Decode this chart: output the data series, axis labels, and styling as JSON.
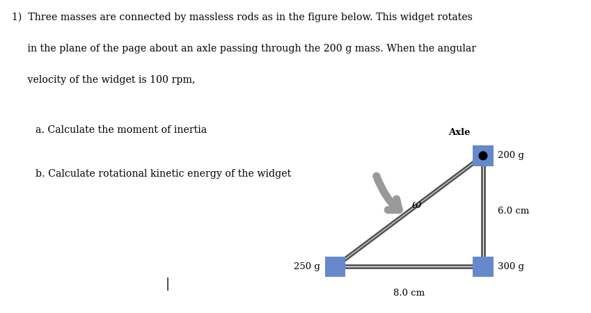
{
  "background_color": "#ffffff",
  "mass_color": "#6688cc",
  "rod_color": "#555555",
  "axle_label": "Axle",
  "mass_200_label": "200 g",
  "mass_250_label": "250 g",
  "mass_300_label": "300 g",
  "dim_horiz": "8.0 cm",
  "dim_vert": "6.0 cm",
  "omega_label": "ω",
  "line1": "1)  Three masses are connected by massless rods as in the figure below. This widget rotates",
  "line2": "     in the plane of the page about an axle passing through the 200 g mass. When the angular",
  "line3": "     velocity of the widget is 100 rpm,",
  "sub_a": "a. Calculate the moment of inertia",
  "sub_b": "b. Calculate rotational kinetic energy of the widget",
  "fig_width": 8.49,
  "fig_height": 4.5,
  "dpi": 100
}
